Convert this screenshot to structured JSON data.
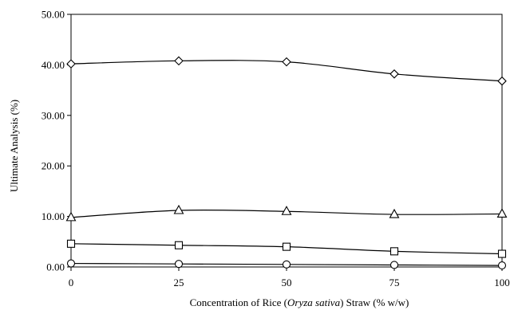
{
  "chart_data": {
    "type": "line",
    "title": "",
    "xlabel_parts": {
      "pre": "Concentration of Rice (",
      "italic": "Oryza sativa",
      "post": ") Straw (% w/w)"
    },
    "ylabel": "Ultimate Analysis (%)",
    "x": [
      0,
      25,
      50,
      75,
      100
    ],
    "x_ticks": [
      "0",
      "25",
      "50",
      "75",
      "100"
    ],
    "y_ticks": [
      "0.00",
      "10.00",
      "20.00",
      "30.00",
      "40.00",
      "50.00"
    ],
    "xlim": [
      0,
      100
    ],
    "ylim": [
      0,
      50
    ],
    "grid": false,
    "legend": "none",
    "series": [
      {
        "marker": "diamond",
        "values": [
          40.2,
          40.8,
          40.6,
          38.2,
          36.8
        ]
      },
      {
        "marker": "triangle",
        "values": [
          9.8,
          11.2,
          11.0,
          10.4,
          10.5
        ]
      },
      {
        "marker": "square",
        "values": [
          4.6,
          4.3,
          4.0,
          3.1,
          2.6
        ]
      },
      {
        "marker": "circle",
        "values": [
          0.7,
          0.6,
          0.5,
          0.4,
          0.3
        ]
      }
    ]
  }
}
